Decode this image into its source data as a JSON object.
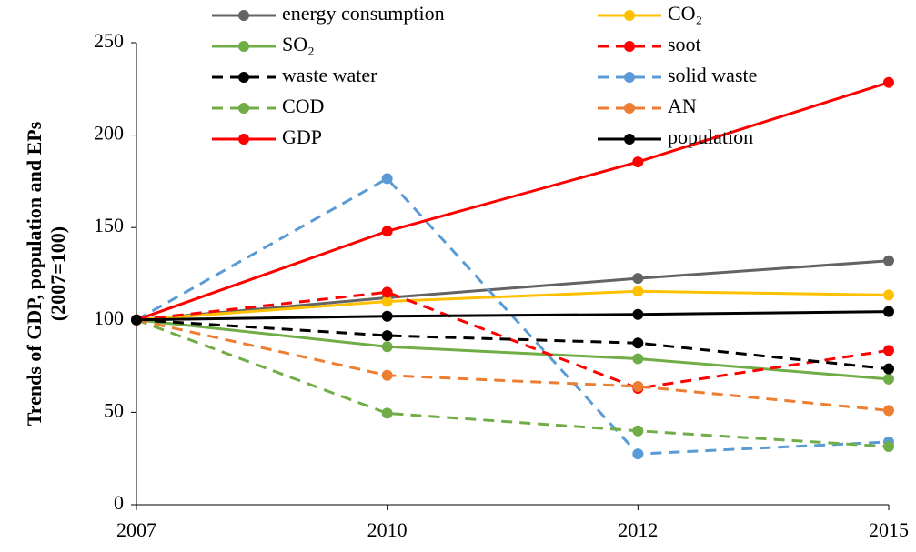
{
  "chart_data": {
    "type": "line",
    "y_label": [
      "Trends of GDP, population and EPs",
      "(2007=100)"
    ],
    "categories": [
      "2007",
      "2010",
      "2012",
      "2015"
    ],
    "ylim": [
      0,
      250
    ],
    "yticks": [
      0,
      50,
      100,
      150,
      200,
      250
    ],
    "series": [
      {
        "name": "energy consumption",
        "color": "#636363",
        "dashed": false,
        "values": [
          100,
          112,
          122.5,
          132
        ]
      },
      {
        "name": "CO₂",
        "color": "#ffc000",
        "dashed": false,
        "values": [
          100,
          110,
          115.5,
          113.5
        ]
      },
      {
        "name": "SO₂",
        "color": "#70ad47",
        "dashed": false,
        "values": [
          100,
          85.5,
          79,
          68
        ]
      },
      {
        "name": "soot",
        "color": "#ff0000",
        "dashed": true,
        "values": [
          100,
          115,
          63,
          83.5
        ]
      },
      {
        "name": "waste water",
        "color": "#000000",
        "dashed": true,
        "values": [
          100,
          91.5,
          87.5,
          73.5
        ]
      },
      {
        "name": "solid waste",
        "color": "#5b9bd5",
        "dashed": true,
        "values": [
          100,
          176.5,
          27.5,
          34
        ]
      },
      {
        "name": "COD",
        "color": "#70ad47",
        "dashed": true,
        "values": [
          100,
          49.5,
          40,
          31.5
        ]
      },
      {
        "name": "AN",
        "color": "#ed7d31",
        "dashed": true,
        "values": [
          100,
          70,
          64,
          51
        ]
      },
      {
        "name": "GDP",
        "color": "#ff0000",
        "dashed": false,
        "values": [
          100,
          148,
          185.5,
          228.5
        ]
      },
      {
        "name": "population",
        "color": "#000000",
        "dashed": false,
        "values": [
          100,
          102,
          103,
          104.5
        ]
      }
    ]
  }
}
